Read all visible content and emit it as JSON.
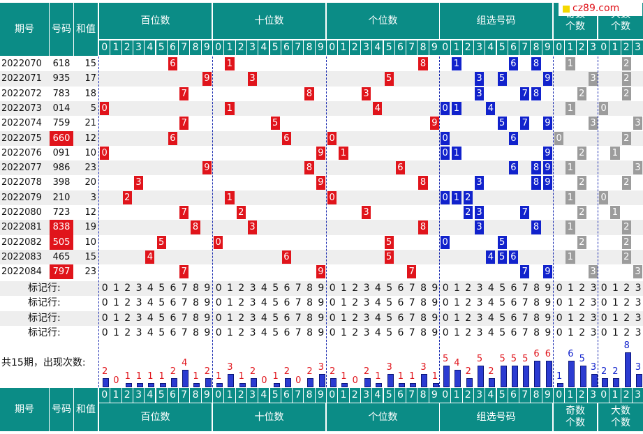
{
  "site_badge": "cz89.com",
  "header": {
    "issue": "期号",
    "number": "号码",
    "sum": "和值",
    "hundreds": "百位数",
    "tens": "十位数",
    "units": "个位数",
    "group": "组选号码",
    "odd": "奇数个数",
    "big": "大数个数"
  },
  "marker_label": "标记行:",
  "count_label": "共15期，出现次数:",
  "colors": {
    "teal": "#0b8c86",
    "red": "#e0141b",
    "blue": "#1122cc",
    "grey": "#9c9c9c",
    "bar": "#2b3bd1"
  },
  "chart_data": {
    "type": "table",
    "rows": [
      {
        "issue": "2022070",
        "number": "618",
        "sum": "15",
        "hl": false
      },
      {
        "issue": "2022071",
        "number": "935",
        "sum": "17",
        "hl": false
      },
      {
        "issue": "2022072",
        "number": "783",
        "sum": "18",
        "hl": false
      },
      {
        "issue": "2022073",
        "number": "014",
        "sum": "5",
        "hl": false
      },
      {
        "issue": "2022074",
        "number": "759",
        "sum": "21",
        "hl": false
      },
      {
        "issue": "2022075",
        "number": "660",
        "sum": "12",
        "hl": true
      },
      {
        "issue": "2022076",
        "number": "091",
        "sum": "10",
        "hl": false
      },
      {
        "issue": "2022077",
        "number": "986",
        "sum": "23",
        "hl": false
      },
      {
        "issue": "2022078",
        "number": "398",
        "sum": "20",
        "hl": false
      },
      {
        "issue": "2022079",
        "number": "210",
        "sum": "3",
        "hl": false
      },
      {
        "issue": "2022080",
        "number": "723",
        "sum": "12",
        "hl": false
      },
      {
        "issue": "2022081",
        "number": "838",
        "sum": "19",
        "hl": true
      },
      {
        "issue": "2022082",
        "number": "505",
        "sum": "10",
        "hl": true
      },
      {
        "issue": "2022083",
        "number": "465",
        "sum": "15",
        "hl": false
      },
      {
        "issue": "2022084",
        "number": "797",
        "sum": "23",
        "hl": true
      }
    ],
    "counts": {
      "hundreds": [
        2,
        0,
        1,
        1,
        1,
        1,
        2,
        4,
        1,
        2
      ],
      "tens": [
        1,
        3,
        1,
        2,
        0,
        1,
        2,
        0,
        2,
        3
      ],
      "units": [
        2,
        1,
        0,
        2,
        1,
        3,
        1,
        1,
        3,
        1
      ],
      "group": [
        5,
        4,
        2,
        5,
        2,
        5,
        5,
        5,
        6,
        6
      ],
      "odd": [
        1,
        6,
        5,
        3
      ],
      "big": [
        2,
        2,
        8,
        3
      ]
    }
  }
}
